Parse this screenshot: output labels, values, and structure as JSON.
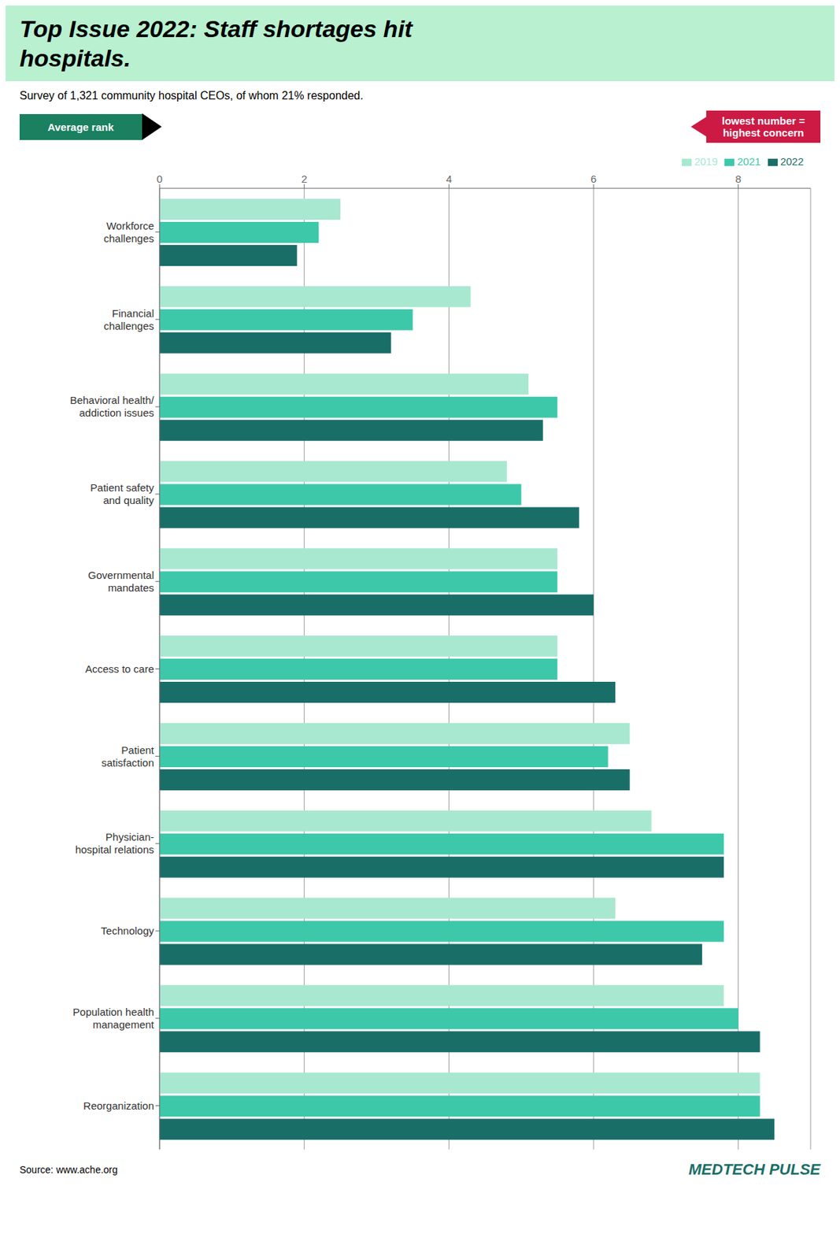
{
  "chart_data": {
    "type": "bar",
    "orientation": "horizontal",
    "title": "Top Issue 2022: Staff shortages hit\nhospitals.",
    "subtitle": "Survey of 1,321 community hospital CEOs, of whom 21% responded.",
    "xlabel": "Average rank",
    "annotations": [
      "lowest number =\nhighest concern",
      "Source: www.ache.org",
      "MEDTECH PULSE"
    ],
    "categories": [
      "Workforce\nchallenges",
      "Financial\nchallenges",
      "Behavioral health/\naddiction issues",
      "Patient safety\nand quality",
      "Governmental\nmandates",
      "Access to care",
      "Patient\nsatisfaction",
      "Physician-\nhospital relations",
      "Technology",
      "Population health\nmanagement",
      "Reorganization"
    ],
    "series": [
      {
        "name": "2019",
        "color": "#a8e8d0",
        "values": [
          2.5,
          4.3,
          5.1,
          4.8,
          5.5,
          5.5,
          6.5,
          6.8,
          6.3,
          7.8,
          8.3
        ]
      },
      {
        "name": "2021",
        "color": "#3dc8aa",
        "values": [
          2.2,
          3.5,
          5.5,
          5.0,
          5.5,
          5.5,
          6.2,
          7.8,
          7.8,
          8.0,
          8.3
        ]
      },
      {
        "name": "2022",
        "color": "#1a6e68",
        "values": [
          1.9,
          3.2,
          5.3,
          5.8,
          6.0,
          6.3,
          6.5,
          7.8,
          7.5,
          8.3,
          8.5
        ]
      }
    ],
    "xlim": [
      0,
      9
    ],
    "xticks": [
      0,
      2,
      4,
      6,
      8
    ],
    "grid": true,
    "legend": "upper right"
  }
}
